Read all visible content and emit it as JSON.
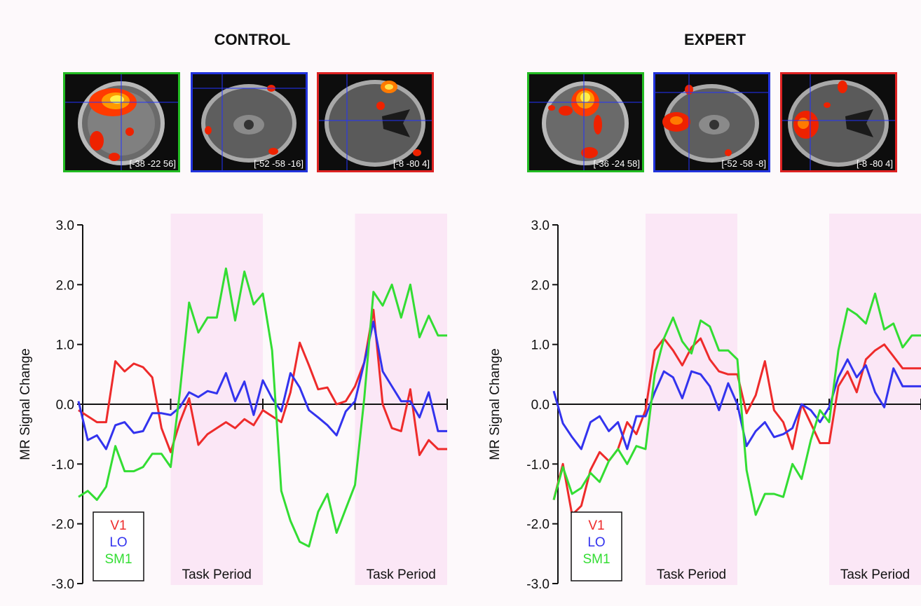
{
  "titles": {
    "control": "CONTROL",
    "expert": "EXPERT"
  },
  "scans": {
    "control": [
      "[-38 -22 56]",
      "[-52 -58 -16]",
      "[-8 -80 4]"
    ],
    "expert": [
      "[-36 -24 58]",
      "[-52 -58 -8]",
      "[-8 -80 4]"
    ]
  },
  "colors": {
    "V1": "#ee2b2b",
    "LO": "#3333ee",
    "SM1": "#33dd33",
    "task": "#fbe7f6"
  },
  "chart_data": [
    {
      "type": "line",
      "title": "CONTROL",
      "xlabel": "",
      "ylabel": "MR Signal Change",
      "ylim": [
        -3.0,
        3.0
      ],
      "yticks": [
        "3.0",
        "2.0",
        "1.0",
        "0.0",
        "-1.0",
        "-2.0",
        "-3.0"
      ],
      "task_periods": [
        [
          10,
          20
        ],
        [
          30,
          40
        ]
      ],
      "annotations": [
        "Task Period",
        "Task Period"
      ],
      "legend": [
        "V1",
        "LO",
        "SM1"
      ],
      "x": [
        0,
        1,
        2,
        3,
        4,
        5,
        6,
        7,
        8,
        9,
        10,
        11,
        12,
        13,
        14,
        15,
        16,
        17,
        18,
        19,
        20,
        21,
        22,
        23,
        24,
        25,
        26,
        27,
        28,
        29,
        30,
        31,
        32,
        33,
        34,
        35,
        36,
        37,
        38,
        39,
        40
      ],
      "series": [
        {
          "name": "V1",
          "values": [
            -0.1,
            -0.2,
            -0.3,
            -0.3,
            0.72,
            0.55,
            0.68,
            0.62,
            0.45,
            -0.4,
            -0.8,
            -0.3,
            0.1,
            -0.68,
            -0.5,
            -0.4,
            -0.3,
            -0.4,
            -0.25,
            -0.35,
            -0.1,
            -0.2,
            -0.3,
            0.2,
            1.03,
            0.65,
            0.25,
            0.28,
            0.0,
            0.05,
            0.3,
            0.7,
            1.58,
            0.0,
            -0.4,
            -0.45,
            0.25,
            -0.85,
            -0.6,
            -0.75,
            -0.75
          ]
        },
        {
          "name": "LO",
          "values": [
            0.05,
            -0.6,
            -0.52,
            -0.75,
            -0.35,
            -0.3,
            -0.48,
            -0.45,
            -0.15,
            -0.15,
            -0.18,
            -0.05,
            0.2,
            0.12,
            0.22,
            0.18,
            0.52,
            0.05,
            0.38,
            -0.18,
            0.4,
            0.1,
            -0.12,
            0.52,
            0.28,
            -0.1,
            -0.22,
            -0.35,
            -0.52,
            -0.12,
            0.05,
            0.7,
            1.38,
            0.55,
            0.3,
            0.05,
            0.05,
            -0.22,
            0.2,
            -0.45,
            -0.45
          ]
        },
        {
          "name": "SM1",
          "values": [
            -1.55,
            -1.45,
            -1.6,
            -1.38,
            -0.7,
            -1.12,
            -1.12,
            -1.05,
            -0.83,
            -0.83,
            -1.05,
            0.2,
            1.7,
            1.2,
            1.45,
            1.45,
            2.27,
            1.4,
            2.22,
            1.67,
            1.85,
            0.9,
            -1.45,
            -1.95,
            -2.3,
            -2.38,
            -1.8,
            -1.5,
            -2.15,
            -1.75,
            -1.35,
            0.1,
            1.88,
            1.65,
            2.0,
            1.45,
            2.0,
            1.12,
            1.48,
            1.15,
            1.15
          ]
        }
      ]
    },
    {
      "type": "line",
      "title": "EXPERT",
      "xlabel": "",
      "ylabel": "MR Signal Change",
      "ylim": [
        -3.0,
        3.0
      ],
      "yticks": [
        "3.0",
        "2.0",
        "1.0",
        "0.0",
        "-1.0",
        "-2.0",
        "-3.0"
      ],
      "task_periods": [
        [
          10,
          20
        ],
        [
          30,
          40
        ]
      ],
      "annotations": [
        "Task Period",
        "Task Period"
      ],
      "legend": [
        "V1",
        "LO",
        "SM1"
      ],
      "x": [
        0,
        1,
        2,
        3,
        4,
        5,
        6,
        7,
        8,
        9,
        10,
        11,
        12,
        13,
        14,
        15,
        16,
        17,
        18,
        19,
        20,
        21,
        22,
        23,
        24,
        25,
        26,
        27,
        28,
        29,
        30,
        31,
        32,
        33,
        34,
        35,
        36,
        37,
        38,
        39,
        40
      ],
      "series": [
        {
          "name": "V1",
          "values": [
            -1.6,
            -1.0,
            -1.85,
            -1.7,
            -1.1,
            -0.8,
            -0.95,
            -0.75,
            -0.3,
            -0.5,
            -0.1,
            0.9,
            1.1,
            0.9,
            0.65,
            0.95,
            1.1,
            0.75,
            0.55,
            0.5,
            0.5,
            -0.15,
            0.15,
            0.72,
            -0.1,
            -0.3,
            -0.75,
            0.0,
            -0.32,
            -0.65,
            -0.65,
            0.3,
            0.55,
            0.2,
            0.75,
            0.9,
            1.0,
            0.8,
            0.6,
            0.6,
            0.6
          ]
        },
        {
          "name": "LO",
          "values": [
            0.22,
            -0.32,
            -0.55,
            -0.75,
            -0.3,
            -0.2,
            -0.45,
            -0.3,
            -0.75,
            -0.2,
            -0.2,
            0.2,
            0.55,
            0.45,
            0.1,
            0.55,
            0.5,
            0.3,
            -0.1,
            0.35,
            0.0,
            -0.7,
            -0.45,
            -0.3,
            -0.55,
            -0.5,
            -0.4,
            0.0,
            -0.1,
            -0.3,
            -0.05,
            0.45,
            0.75,
            0.45,
            0.65,
            0.2,
            -0.05,
            0.6,
            0.3,
            0.3,
            0.3
          ]
        },
        {
          "name": "SM1",
          "values": [
            -1.6,
            -1.05,
            -1.5,
            -1.4,
            -1.15,
            -1.3,
            -0.95,
            -0.75,
            -1.0,
            -0.7,
            -0.75,
            0.5,
            1.1,
            1.45,
            1.05,
            0.85,
            1.4,
            1.3,
            0.9,
            0.9,
            0.75,
            -1.1,
            -1.85,
            -1.5,
            -1.5,
            -1.55,
            -1.0,
            -1.25,
            -0.6,
            -0.1,
            -0.3,
            0.9,
            1.6,
            1.5,
            1.35,
            1.85,
            1.25,
            1.35,
            0.95,
            1.15,
            1.15
          ]
        }
      ]
    }
  ]
}
